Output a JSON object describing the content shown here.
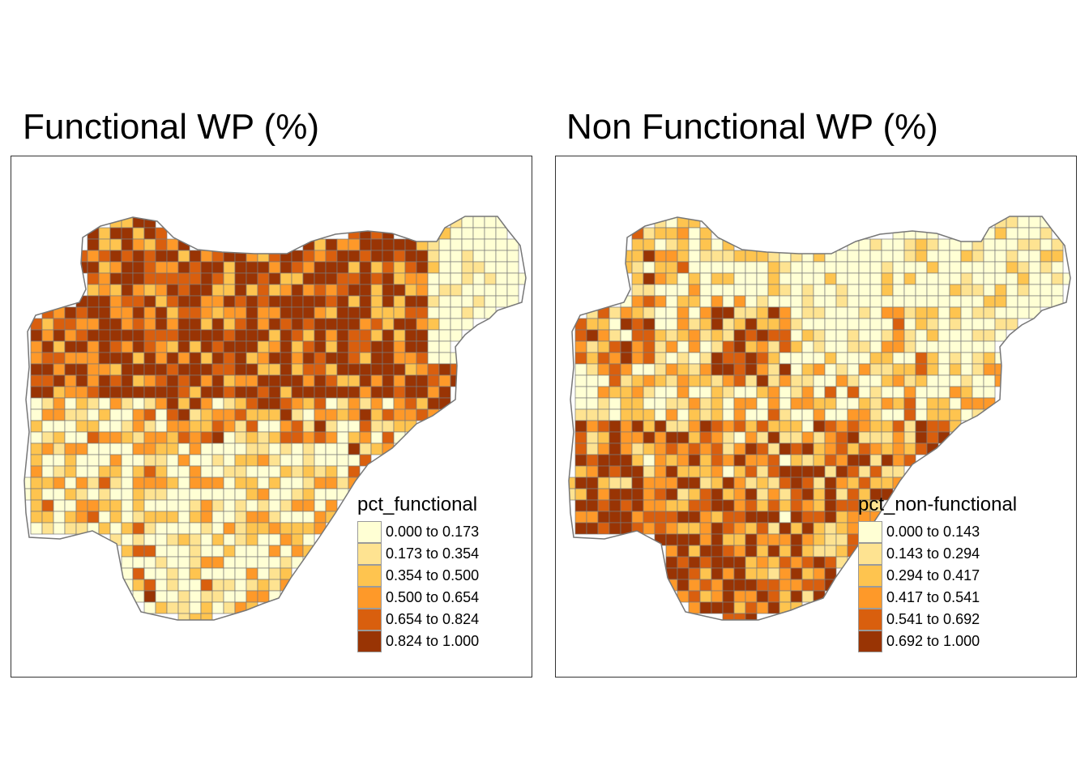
{
  "maps": [
    {
      "title": "Functional WP (%)",
      "legend": {
        "title": "pct_functional",
        "classes": [
          {
            "label": "0.000 to 0.173",
            "color": "#ffffd4"
          },
          {
            "label": "0.173 to 0.354",
            "color": "#fee391"
          },
          {
            "label": "0.354 to 0.500",
            "color": "#fec44f"
          },
          {
            "label": "0.500 to 0.654",
            "color": "#fe9929"
          },
          {
            "label": "0.654 to 0.824",
            "color": "#d95f0e"
          },
          {
            "label": "0.824 to 1.000",
            "color": "#993404"
          }
        ]
      }
    },
    {
      "title": "Non Functional WP (%)",
      "legend": {
        "title": "pct_non-functional",
        "classes": [
          {
            "label": "0.000 to 0.143",
            "color": "#ffffd4"
          },
          {
            "label": "0.143 to 0.294",
            "color": "#fee391"
          },
          {
            "label": "0.294 to 0.417",
            "color": "#fec44f"
          },
          {
            "label": "0.417 to 0.541",
            "color": "#fe9929"
          },
          {
            "label": "0.541 to 0.692",
            "color": "#d95f0e"
          },
          {
            "label": "0.692 to 1.000",
            "color": "#993404"
          }
        ]
      }
    }
  ]
}
